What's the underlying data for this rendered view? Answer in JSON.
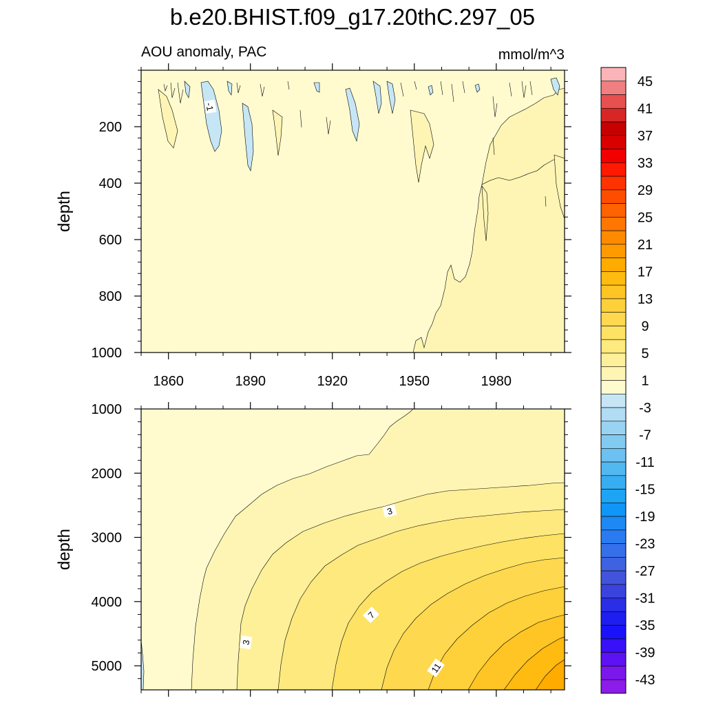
{
  "chart_data": {
    "type": "contour",
    "title": "b.e20.BHIST.f09_g17.20thC.297_05",
    "subtitle_left": "AOU anomaly, PAC",
    "units": "mmol/m^3",
    "xrange": [
      1850,
      2005
    ],
    "x_ticks": [
      1860,
      1890,
      1920,
      1950,
      1980
    ],
    "panels": [
      {
        "name": "upper",
        "ylabel": "depth",
        "yrange": [
          0,
          1000
        ],
        "y_ticks": [
          200,
          400,
          600,
          800,
          1000
        ],
        "contour_labels": [
          "-1"
        ]
      },
      {
        "name": "lower",
        "ylabel": "depth",
        "yrange": [
          1000,
          5375
        ],
        "y_ticks": [
          1000,
          2000,
          3000,
          4000,
          5000
        ],
        "contour_labels": [
          "3",
          "3",
          "7",
          "11"
        ]
      }
    ],
    "colorbar": {
      "labels": [
        "45",
        "41",
        "37",
        "33",
        "29",
        "25",
        "21",
        "17",
        "13",
        "9",
        "5",
        "1",
        "-3",
        "-7",
        "-11",
        "-15",
        "-19",
        "-23",
        "-27",
        "-31",
        "-35",
        "-39",
        "-43"
      ],
      "colors": [
        "#fbb4b8",
        "#f07f80",
        "#e85050",
        "#d82626",
        "#c70000",
        "#da0000",
        "#f20000",
        "#ff1a00",
        "#ff3300",
        "#ff4d00",
        "#ff6200",
        "#ff7600",
        "#ff8a00",
        "#ff9b00",
        "#ffab00",
        "#ffbb10",
        "#fec525",
        "#fed03a",
        "#fed94f",
        "#fee264",
        "#feea7e",
        "#fef098",
        "#fef5b4",
        "#fffbcf",
        "#c6e6f6",
        "#b0dcf4",
        "#9ad3f2",
        "#83caf1",
        "#6cc1f0",
        "#52b8f0",
        "#37adf2",
        "#1ea4f5",
        "#0f96f7",
        "#1e89f4",
        "#2a7bf0",
        "#3570ea",
        "#3f62e2",
        "#4254dc",
        "#3b43de",
        "#2a2ee6",
        "#1f1ef0",
        "#1a13fa",
        "#3a10f8",
        "#5c12f2",
        "#7a18ec",
        "#8c1cea"
      ]
    }
  }
}
